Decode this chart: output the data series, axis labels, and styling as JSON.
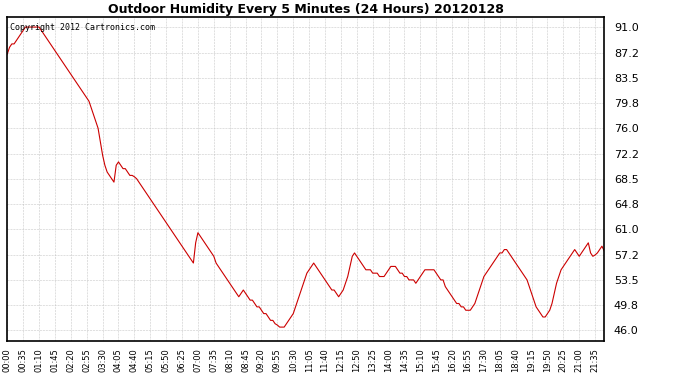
{
  "title": "Outdoor Humidity Every 5 Minutes (24 Hours) 20120128",
  "copyright_text": "Copyright 2012 Cartronics.com",
  "line_color": "#cc0000",
  "background_color": "#ffffff",
  "grid_color": "#bbbbbb",
  "yticks": [
    46.0,
    49.8,
    53.5,
    57.2,
    61.0,
    64.8,
    68.5,
    72.2,
    76.0,
    79.8,
    83.5,
    87.2,
    91.0
  ],
  "ylim": [
    44.5,
    92.5
  ],
  "humidity_values": [
    87.0,
    88.0,
    88.5,
    88.5,
    89.0,
    89.5,
    90.0,
    90.5,
    91.0,
    91.0,
    91.0,
    91.0,
    91.0,
    91.0,
    91.0,
    90.5,
    90.0,
    89.5,
    89.0,
    88.5,
    88.0,
    87.5,
    87.0,
    86.5,
    86.0,
    85.5,
    85.0,
    84.5,
    84.0,
    83.5,
    83.0,
    82.5,
    82.0,
    81.5,
    81.0,
    80.5,
    80.0,
    79.0,
    78.0,
    77.0,
    76.0,
    74.0,
    72.0,
    70.5,
    69.5,
    69.0,
    68.5,
    68.0,
    70.5,
    71.0,
    70.5,
    70.0,
    70.0,
    69.5,
    69.0,
    69.0,
    68.8,
    68.5,
    68.0,
    67.5,
    67.0,
    66.5,
    66.0,
    65.5,
    65.0,
    64.5,
    64.0,
    63.5,
    63.0,
    62.5,
    62.0,
    61.5,
    61.0,
    60.5,
    60.0,
    59.5,
    59.0,
    58.5,
    58.0,
    57.5,
    57.0,
    56.5,
    56.0,
    59.0,
    60.5,
    60.0,
    59.5,
    59.0,
    58.5,
    58.0,
    57.5,
    57.0,
    56.0,
    55.5,
    55.0,
    54.5,
    54.0,
    53.5,
    53.0,
    52.5,
    52.0,
    51.5,
    51.0,
    51.5,
    52.0,
    51.5,
    51.0,
    50.5,
    50.5,
    50.0,
    49.5,
    49.5,
    49.0,
    48.5,
    48.5,
    48.0,
    47.5,
    47.5,
    47.0,
    46.8,
    46.5,
    46.5,
    46.5,
    47.0,
    47.5,
    48.0,
    48.5,
    49.5,
    50.5,
    51.5,
    52.5,
    53.5,
    54.5,
    55.0,
    55.5,
    56.0,
    55.5,
    55.0,
    54.5,
    54.0,
    53.5,
    53.0,
    52.5,
    52.0,
    52.0,
    51.5,
    51.0,
    51.5,
    52.0,
    53.0,
    54.0,
    55.5,
    57.0,
    57.5,
    57.0,
    56.5,
    56.0,
    55.5,
    55.0,
    55.0,
    55.0,
    54.5,
    54.5,
    54.5,
    54.0,
    54.0,
    54.0,
    54.5,
    55.0,
    55.5,
    55.5,
    55.5,
    55.0,
    54.5,
    54.5,
    54.0,
    54.0,
    53.5,
    53.5,
    53.5,
    53.0,
    53.5,
    54.0,
    54.5,
    55.0,
    55.0,
    55.0,
    55.0,
    55.0,
    54.5,
    54.0,
    53.5,
    53.5,
    52.5,
    52.0,
    51.5,
    51.0,
    50.5,
    50.0,
    50.0,
    49.5,
    49.5,
    49.0,
    49.0,
    49.0,
    49.5,
    50.0,
    51.0,
    52.0,
    53.0,
    54.0,
    54.5,
    55.0,
    55.5,
    56.0,
    56.5,
    57.0,
    57.5,
    57.5,
    58.0,
    58.0,
    57.5,
    57.0,
    56.5,
    56.0,
    55.5,
    55.0,
    54.5,
    54.0,
    53.5,
    52.5,
    51.5,
    50.5,
    49.5,
    49.0,
    48.5,
    48.0,
    48.0,
    48.5,
    49.0,
    50.0,
    51.5,
    53.0,
    54.0,
    55.0,
    55.5,
    56.0,
    56.5,
    57.0,
    57.5,
    58.0,
    57.5,
    57.0,
    57.5,
    58.0,
    58.5,
    59.0,
    57.5,
    57.0,
    57.2,
    57.5,
    58.0,
    58.5,
    57.8
  ],
  "xtick_step": 7,
  "title_fontsize": 9,
  "copyright_fontsize": 6,
  "ytick_fontsize": 8,
  "xtick_fontsize": 6
}
